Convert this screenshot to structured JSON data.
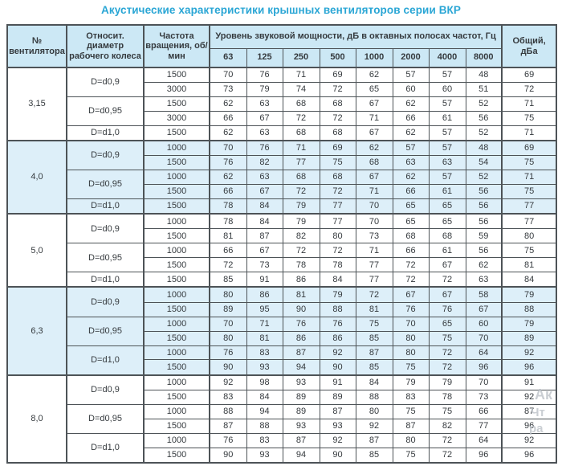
{
  "title": "Акустические характеристики крышных вентиляторов серии ВКР",
  "colors": {
    "title": "#2aa6d5",
    "header_bg": "#cce8f5",
    "tint_bg": "#ddeff9",
    "border": "#4d5357",
    "text": "#353a3e",
    "watermark": "#bdc3c9"
  },
  "watermark": {
    "lines": [
      "Ак",
      "Чт",
      "ра"
    ]
  },
  "table": {
    "headers": {
      "fan": "№ вентилятора",
      "diameter": "Относит. диаметр рабочего колеса",
      "speed": "Частота вращения, об/мин",
      "spl_group": "Уровень звуковой мощности, дБ в октавных полосах частот, Гц",
      "frequencies": [
        "63",
        "125",
        "250",
        "500",
        "1000",
        "2000",
        "4000",
        "8000"
      ],
      "total": "Общий, дБа"
    },
    "groups": [
      {
        "fan": "3,15",
        "tinted": false,
        "subgroups": [
          {
            "diameter": "D=d0,9",
            "rows": [
              {
                "speed": "1500",
                "values": [
                  70,
                  76,
                  71,
                  69,
                  62,
                  57,
                  57,
                  48
                ],
                "total": 69
              },
              {
                "speed": "3000",
                "values": [
                  73,
                  79,
                  74,
                  72,
                  65,
                  60,
                  60,
                  51
                ],
                "total": 72
              }
            ]
          },
          {
            "diameter": "D=d0,95",
            "rows": [
              {
                "speed": "1500",
                "values": [
                  62,
                  63,
                  68,
                  68,
                  67,
                  62,
                  57,
                  52
                ],
                "total": 71
              },
              {
                "speed": "3000",
                "values": [
                  66,
                  67,
                  72,
                  72,
                  71,
                  66,
                  61,
                  56
                ],
                "total": 75
              }
            ]
          },
          {
            "diameter": "D=d1,0",
            "rows": [
              {
                "speed": "1500",
                "values": [
                  62,
                  63,
                  68,
                  68,
                  67,
                  62,
                  57,
                  52
                ],
                "total": 71
              }
            ]
          }
        ]
      },
      {
        "fan": "4,0",
        "tinted": true,
        "subgroups": [
          {
            "diameter": "D=d0,9",
            "rows": [
              {
                "speed": "1000",
                "values": [
                  70,
                  76,
                  71,
                  69,
                  62,
                  57,
                  57,
                  48
                ],
                "total": 69
              },
              {
                "speed": "1500",
                "values": [
                  76,
                  82,
                  77,
                  75,
                  68,
                  63,
                  63,
                  54
                ],
                "total": 75
              }
            ]
          },
          {
            "diameter": "D=d0,95",
            "rows": [
              {
                "speed": "1000",
                "values": [
                  62,
                  63,
                  68,
                  68,
                  67,
                  62,
                  57,
                  52
                ],
                "total": 71
              },
              {
                "speed": "1500",
                "values": [
                  66,
                  67,
                  72,
                  72,
                  71,
                  66,
                  61,
                  56
                ],
                "total": 75
              }
            ]
          },
          {
            "diameter": "D=d1,0",
            "rows": [
              {
                "speed": "1500",
                "values": [
                  78,
                  84,
                  79,
                  77,
                  70,
                  65,
                  65,
                  56
                ],
                "total": 77
              }
            ]
          }
        ]
      },
      {
        "fan": "5,0",
        "tinted": false,
        "subgroups": [
          {
            "diameter": "D=d0,9",
            "rows": [
              {
                "speed": "1000",
                "values": [
                  78,
                  84,
                  79,
                  77,
                  70,
                  65,
                  65,
                  56
                ],
                "total": 77
              },
              {
                "speed": "1500",
                "values": [
                  81,
                  87,
                  82,
                  80,
                  73,
                  68,
                  68,
                  59
                ],
                "total": 80
              }
            ]
          },
          {
            "diameter": "D=d0,95",
            "rows": [
              {
                "speed": "1000",
                "values": [
                  66,
                  67,
                  72,
                  72,
                  71,
                  66,
                  61,
                  56
                ],
                "total": 75
              },
              {
                "speed": "1500",
                "values": [
                  72,
                  73,
                  78,
                  78,
                  77,
                  72,
                  67,
                  62
                ],
                "total": 81
              }
            ]
          },
          {
            "diameter": "D=d1,0",
            "rows": [
              {
                "speed": "1500",
                "values": [
                  85,
                  91,
                  86,
                  84,
                  77,
                  72,
                  72,
                  63
                ],
                "total": 84
              }
            ]
          }
        ]
      },
      {
        "fan": "6,3",
        "tinted": true,
        "subgroups": [
          {
            "diameter": "D=d0,9",
            "rows": [
              {
                "speed": "1000",
                "values": [
                  80,
                  86,
                  81,
                  79,
                  72,
                  67,
                  67,
                  58
                ],
                "total": 79
              },
              {
                "speed": "1500",
                "values": [
                  89,
                  95,
                  90,
                  88,
                  81,
                  76,
                  76,
                  67
                ],
                "total": 88
              }
            ]
          },
          {
            "diameter": "D=d0,95",
            "rows": [
              {
                "speed": "1000",
                "values": [
                  70,
                  71,
                  76,
                  76,
                  75,
                  70,
                  65,
                  60
                ],
                "total": 79
              },
              {
                "speed": "1500",
                "values": [
                  80,
                  81,
                  86,
                  86,
                  85,
                  80,
                  75,
                  70
                ],
                "total": 89
              }
            ]
          },
          {
            "diameter": "D=d1,0",
            "rows": [
              {
                "speed": "1000",
                "values": [
                  76,
                  83,
                  87,
                  92,
                  87,
                  80,
                  72,
                  64
                ],
                "total": 92
              },
              {
                "speed": "1500",
                "values": [
                  90,
                  93,
                  94,
                  90,
                  85,
                  75,
                  72,
                  96
                ],
                "total": 96
              }
            ]
          }
        ]
      },
      {
        "fan": "8,0",
        "tinted": false,
        "subgroups": [
          {
            "diameter": "D=d0,9",
            "rows": [
              {
                "speed": "1000",
                "values": [
                  92,
                  98,
                  93,
                  91,
                  84,
                  79,
                  79,
                  70
                ],
                "total": 91
              },
              {
                "speed": "1500",
                "values": [
                  83,
                  84,
                  89,
                  89,
                  88,
                  83,
                  78,
                  73
                ],
                "total": 92
              }
            ]
          },
          {
            "diameter": "D=d0,95",
            "rows": [
              {
                "speed": "1000",
                "values": [
                  88,
                  94,
                  89,
                  87,
                  80,
                  75,
                  75,
                  66
                ],
                "total": 87
              },
              {
                "speed": "1500",
                "values": [
                  87,
                  88,
                  93,
                  93,
                  92,
                  87,
                  82,
                  77
                ],
                "total": 96
              }
            ]
          },
          {
            "diameter": "D=d1,0",
            "rows": [
              {
                "speed": "1000",
                "values": [
                  76,
                  83,
                  87,
                  92,
                  87,
                  80,
                  72,
                  64
                ],
                "total": 92
              },
              {
                "speed": "1500",
                "values": [
                  90,
                  93,
                  94,
                  90,
                  85,
                  75,
                  72,
                  96
                ],
                "total": 96
              }
            ]
          }
        ]
      }
    ]
  }
}
